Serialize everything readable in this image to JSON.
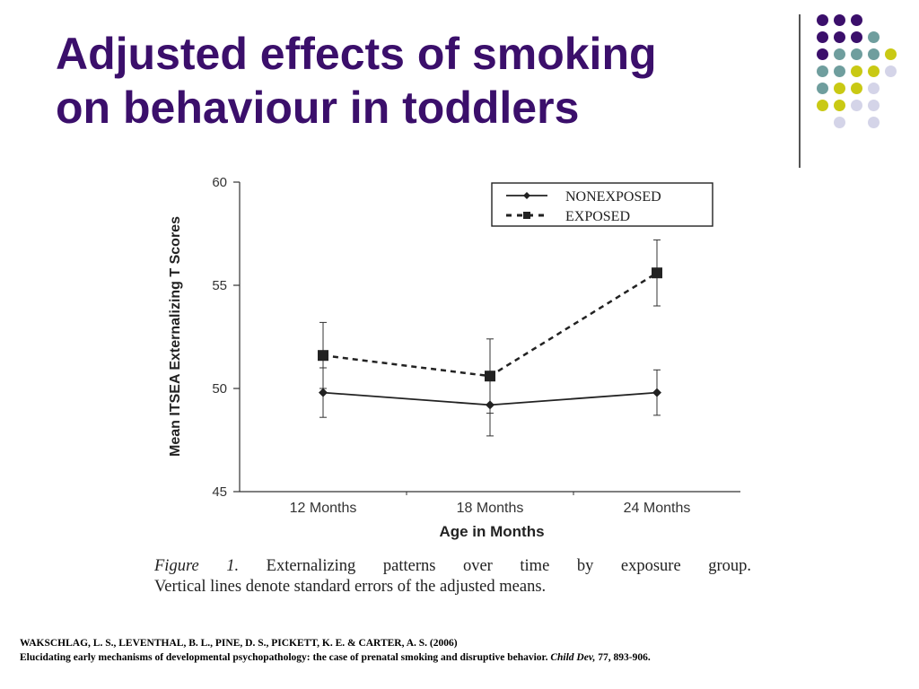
{
  "slide": {
    "title_line1": "Adjusted effects of smoking",
    "title_line2": "on behaviour in toddlers"
  },
  "caption": {
    "figure_label": "Figure 1.",
    "line1_text": "Externalizing patterns over time by exposure group.",
    "line2": "Vertical lines denote standard errors of the adjusted means."
  },
  "citation": {
    "line1": "WAKSCHLAG, L. S., LEVENTHAL, B. L., PINE, D. S., PICKETT, K. E. & CARTER, A. S. (2006)",
    "line2_main": "Elucidating early mechanisms of developmental psychopathology: the case of prenatal smoking and disruptive behavior.",
    "journal": "Child Dev,",
    "volume_pages": "77, 893-906."
  },
  "decor": {
    "accent_colors": {
      "purple": "#3b0f6b",
      "teal": "#6f9e9e",
      "yellow": "#c9c914",
      "lavender": "#d4d4e8"
    },
    "dot_grid": [
      [
        "purple",
        "purple",
        "purple",
        null,
        null
      ],
      [
        "purple",
        "purple",
        "purple",
        "teal",
        null
      ],
      [
        "purple",
        "teal",
        "teal",
        "teal",
        "yellow"
      ],
      [
        "teal",
        "teal",
        "yellow",
        "yellow",
        "lavender"
      ],
      [
        "teal",
        "yellow",
        "yellow",
        "lavender",
        null
      ],
      [
        "yellow",
        "yellow",
        "lavender",
        "lavender",
        null
      ],
      [
        null,
        "lavender",
        null,
        "lavender",
        null
      ]
    ]
  },
  "chart_data": {
    "type": "line",
    "title": "",
    "xlabel": "Age in Months",
    "ylabel": "Mean ITSEA Externalizing T Scores",
    "categories": [
      "12 Months",
      "18 Months",
      "24 Months"
    ],
    "ylim": [
      45,
      60
    ],
    "yticks": [
      45,
      50,
      55,
      60
    ],
    "grid": false,
    "legend_position": "top-right",
    "series": [
      {
        "name": "NONEXPOSED",
        "values": [
          49.8,
          49.2,
          49.8
        ],
        "se": [
          1.2,
          1.5,
          1.1
        ],
        "line_style": "solid",
        "marker": "diamond"
      },
      {
        "name": "EXPOSED",
        "values": [
          51.6,
          50.6,
          55.6
        ],
        "se": [
          1.6,
          1.8,
          1.6
        ],
        "line_style": "dashed",
        "marker": "square"
      }
    ]
  }
}
